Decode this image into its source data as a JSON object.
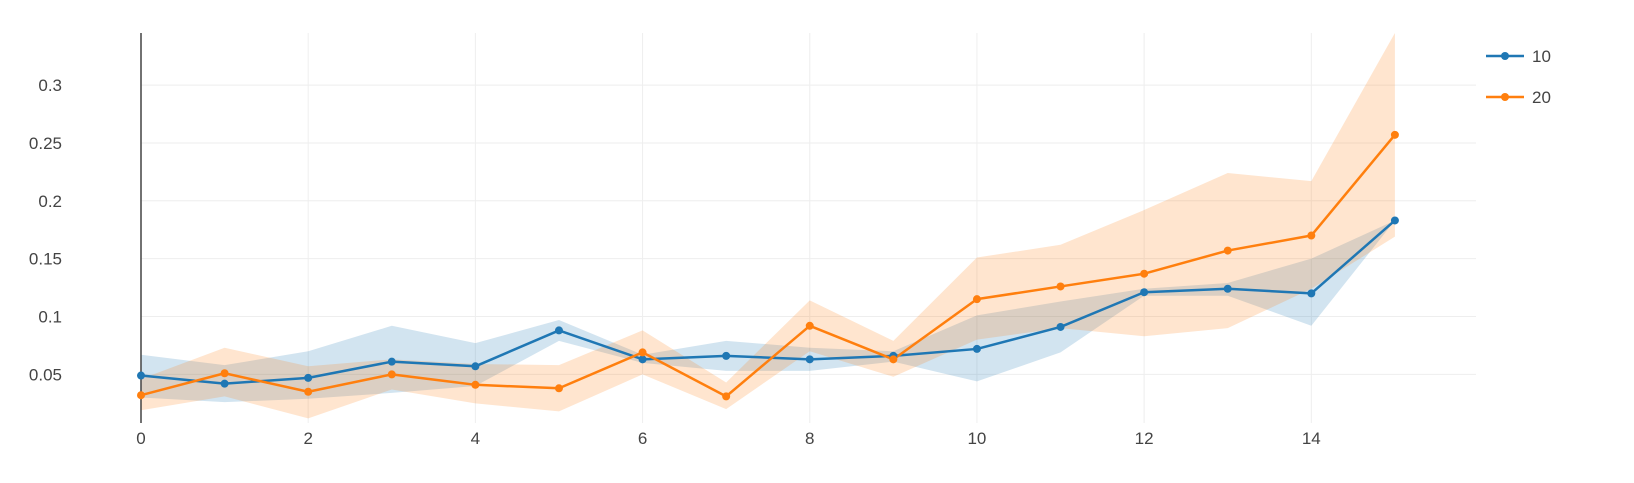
{
  "chart_data": {
    "type": "line",
    "title": "",
    "xlabel": "",
    "ylabel": "",
    "xlim": [
      0,
      16
    ],
    "ylim": [
      0.008,
      0.345
    ],
    "x_ticks": [
      0,
      2,
      4,
      6,
      8,
      10,
      12,
      14
    ],
    "y_ticks": [
      0.05,
      0.1,
      0.15,
      0.2,
      0.25,
      0.3
    ],
    "y_tick_labels": [
      "0.05",
      "0.1",
      "0.15",
      "0.2",
      "0.25",
      "0.3"
    ],
    "x_tick_labels": [
      "0",
      "2",
      "4",
      "6",
      "8",
      "10",
      "12",
      "14"
    ],
    "grid": true,
    "legend_position": "top-right",
    "x": [
      0,
      1,
      2,
      3,
      4,
      5,
      6,
      7,
      8,
      9,
      10,
      11,
      12,
      13,
      14,
      15
    ],
    "series": [
      {
        "name": "10",
        "color": "#1f77b4",
        "band_color": "rgba(31,119,180,0.2)",
        "values": [
          0.049,
          0.042,
          0.047,
          0.061,
          0.057,
          0.088,
          0.063,
          0.066,
          0.063,
          0.066,
          0.072,
          0.091,
          0.121,
          0.124,
          0.12,
          0.183
        ],
        "upper": [
          0.067,
          0.058,
          0.07,
          0.092,
          0.077,
          0.097,
          0.067,
          0.079,
          0.073,
          0.07,
          0.101,
          0.113,
          0.124,
          0.129,
          0.15,
          0.183
        ],
        "lower": [
          0.03,
          0.026,
          0.029,
          0.034,
          0.04,
          0.079,
          0.06,
          0.053,
          0.053,
          0.061,
          0.044,
          0.069,
          0.118,
          0.118,
          0.092,
          0.183
        ]
      },
      {
        "name": "20",
        "color": "#ff7f0e",
        "band_color": "rgba(255,127,14,0.2)",
        "values": [
          0.032,
          0.051,
          0.035,
          0.05,
          0.041,
          0.038,
          0.069,
          0.031,
          0.092,
          0.063,
          0.115,
          0.126,
          0.137,
          0.157,
          0.17,
          0.257
        ],
        "upper": [
          0.046,
          0.073,
          0.057,
          0.063,
          0.059,
          0.058,
          0.088,
          0.043,
          0.114,
          0.079,
          0.151,
          0.162,
          0.192,
          0.224,
          0.217,
          0.345
        ],
        "lower": [
          0.019,
          0.031,
          0.012,
          0.037,
          0.025,
          0.018,
          0.05,
          0.02,
          0.07,
          0.048,
          0.08,
          0.09,
          0.083,
          0.09,
          0.124,
          0.169
        ]
      }
    ]
  }
}
